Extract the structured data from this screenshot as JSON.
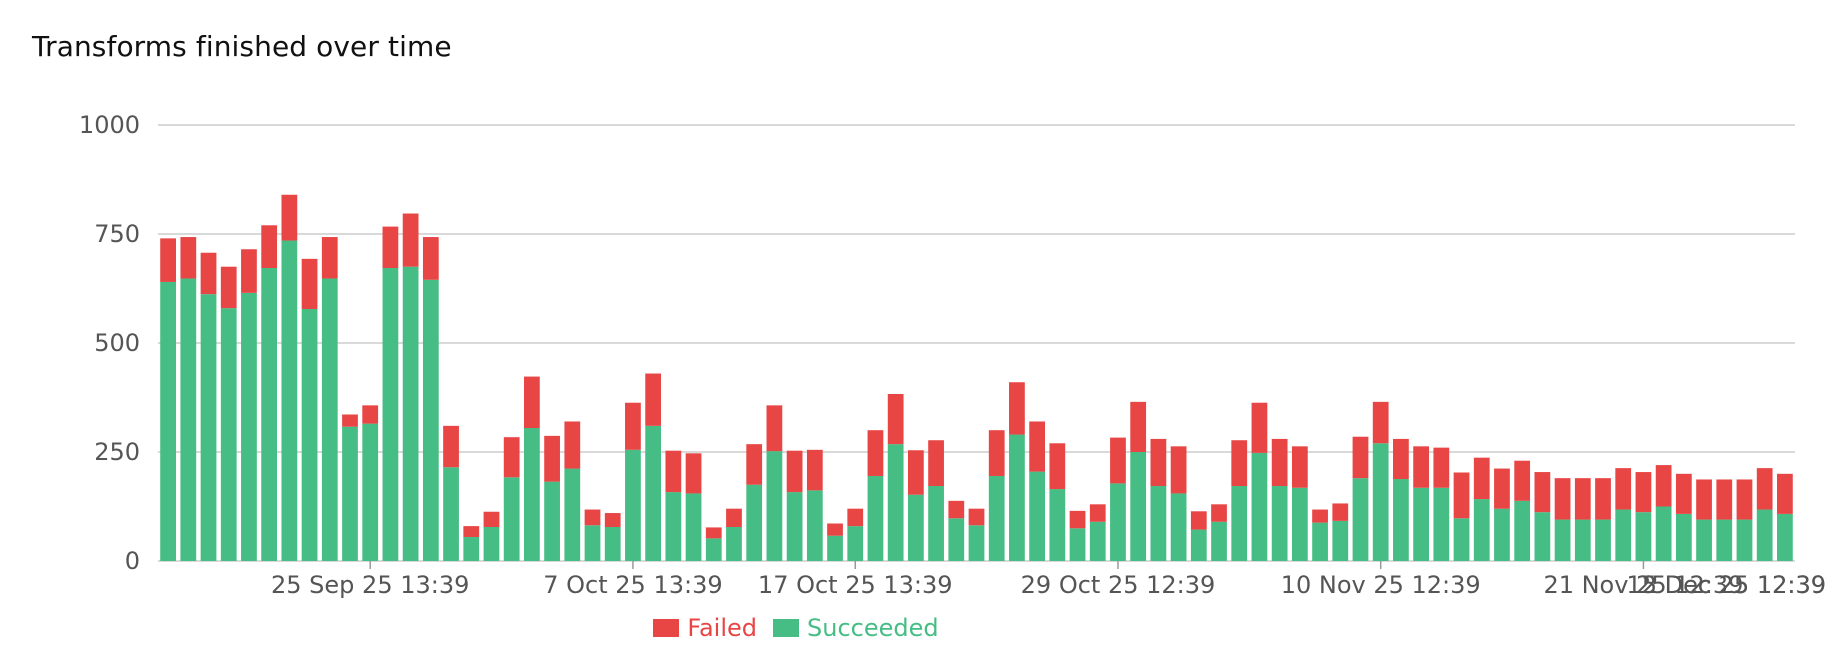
{
  "title": "Transforms finished over time",
  "colors": {
    "failed": "#e84545",
    "succeeded": "#46bd84",
    "grid": "#d9d9d9",
    "axis": "#999999"
  },
  "legend": [
    {
      "key": "failed",
      "label": "Failed",
      "color": "#e84545"
    },
    {
      "key": "succeeded",
      "label": "Succeeded",
      "color": "#46bd84"
    }
  ],
  "chart_data": {
    "type": "bar",
    "stacked": true,
    "title": "Transforms finished over time",
    "ylim": [
      0,
      1000
    ],
    "yticks": [
      0,
      250,
      500,
      750,
      1000
    ],
    "grid": true,
    "legend_position": "bottom",
    "x_tick_labels": [
      {
        "label": "25 Sep 25 13:39",
        "index": 10
      },
      {
        "label": "7 Oct 25 13:39",
        "index": 23
      },
      {
        "label": "17 Oct 25 13:39",
        "index": 34
      },
      {
        "label": "29 Oct 25 12:39",
        "index": 47
      },
      {
        "label": "10 Nov 25 12:39",
        "index": 60
      },
      {
        "label": "21 Nov 25 12:39",
        "index": 73
      },
      {
        "label": "2 Dec 25 12:39",
        "index": 86
      },
      {
        "label": "15 Dec 25 12:39",
        "index": 101
      }
    ],
    "series": [
      {
        "name": "Succeeded",
        "key": "succeeded",
        "values": [
          640,
          648,
          612,
          580,
          615,
          672,
          735,
          578,
          648,
          308,
          315,
          672,
          675,
          645,
          215,
          55,
          78,
          192,
          305,
          182,
          212,
          82,
          78,
          255,
          310,
          158,
          155,
          52,
          78,
          175,
          252,
          158,
          162,
          58,
          80,
          195,
          268,
          152,
          172,
          98,
          82,
          195,
          290,
          205,
          165,
          75,
          90,
          178,
          250,
          172,
          155,
          72,
          90,
          172,
          248,
          172,
          168,
          88,
          92,
          190,
          270,
          188,
          168,
          168,
          98,
          142,
          120,
          138,
          112,
          95,
          95,
          95,
          118,
          112,
          125,
          108,
          95,
          95,
          95,
          118,
          108
        ]
      },
      {
        "name": "Failed",
        "key": "failed",
        "values": [
          100,
          95,
          95,
          95,
          100,
          98,
          105,
          115,
          95,
          28,
          42,
          95,
          122,
          98,
          95,
          25,
          35,
          92,
          118,
          105,
          108,
          36,
          32,
          108,
          120,
          95,
          92,
          25,
          42,
          93,
          105,
          95,
          93,
          28,
          40,
          105,
          115,
          102,
          105,
          40,
          38,
          105,
          120,
          115,
          105,
          40,
          40,
          105,
          115,
          108,
          108,
          42,
          40,
          105,
          115,
          108,
          95,
          30,
          40,
          95,
          95,
          92,
          95,
          92,
          105,
          95,
          92,
          92,
          92,
          95,
          95,
          95,
          95,
          92,
          95,
          92,
          92,
          92,
          92,
          95,
          92
        ]
      }
    ]
  }
}
